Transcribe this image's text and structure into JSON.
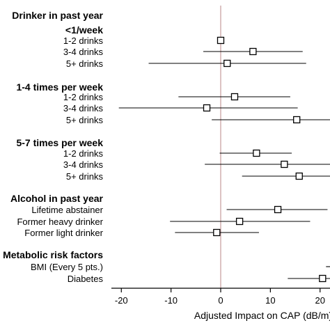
{
  "chart_data": {
    "type": "forest",
    "xlabel": "Adjusted Impact on CAP (dB/m)",
    "xlim": [
      -22,
      22
    ],
    "xticks": [
      -20,
      -10,
      0,
      10,
      20
    ],
    "xtick_labels": [
      "-20",
      "-10",
      "0",
      "10",
      "20"
    ],
    "reference_line": 0,
    "reference_color": "#c9a1a1",
    "groups": [
      {
        "label": "Drinker in past year",
        "subgroups": [
          {
            "label": "<1/week",
            "rows": [
              {
                "label": "1-2 drinks",
                "estimate": 0,
                "ci": [
                  null,
                  null
                ]
              },
              {
                "label": "3-4 drinks",
                "estimate": 6.5,
                "ci": [
                  -3.5,
                  16.5
                ]
              },
              {
                "label": "5+ drinks",
                "estimate": 1.3,
                "ci": [
                  -14.5,
                  17.2
                ]
              }
            ]
          },
          {
            "label": "1-4 times per week",
            "rows": [
              {
                "label": "1-2 drinks",
                "estimate": 2.8,
                "ci": [
                  -8.5,
                  14
                ]
              },
              {
                "label": "3-4 drinks",
                "estimate": -2.8,
                "ci": [
                  -20.5,
                  15.5
                ]
              },
              {
                "label": "5+ drinks",
                "estimate": 15.3,
                "ci": [
                  -1.8,
                  22
                ]
              }
            ]
          },
          {
            "label": "5-7 times per week",
            "rows": [
              {
                "label": "1-2 drinks",
                "estimate": 7.2,
                "ci": [
                  -0.2,
                  14.3
                ]
              },
              {
                "label": "3-4 drinks",
                "estimate": 12.8,
                "ci": [
                  -3.2,
                  22
                ]
              },
              {
                "label": "5+ drinks",
                "estimate": 15.8,
                "ci": [
                  4.3,
                  22
                ]
              }
            ]
          }
        ]
      },
      {
        "label": "Alcohol in past year",
        "subgroups": [
          {
            "label": "",
            "rows": [
              {
                "label": "Lifetime abstainer",
                "estimate": 11.5,
                "ci": [
                  1.2,
                  21.5
                ]
              },
              {
                "label": "Former heavy drinker",
                "estimate": 3.8,
                "ci": [
                  -10.2,
                  18
                ]
              },
              {
                "label": "Former light drinker",
                "estimate": -0.8,
                "ci": [
                  -9.2,
                  7.7
                ]
              }
            ]
          }
        ]
      },
      {
        "label": "Metabolic risk factors",
        "subgroups": [
          {
            "label": "",
            "rows": [
              {
                "label": "BMI (Every 5 pts.)",
                "estimate": null,
                "ci": [
                  21.2,
                  22
                ]
              },
              {
                "label": "Diabetes",
                "estimate": 20.5,
                "ci": [
                  13.5,
                  22
                ]
              }
            ]
          }
        ]
      }
    ]
  }
}
